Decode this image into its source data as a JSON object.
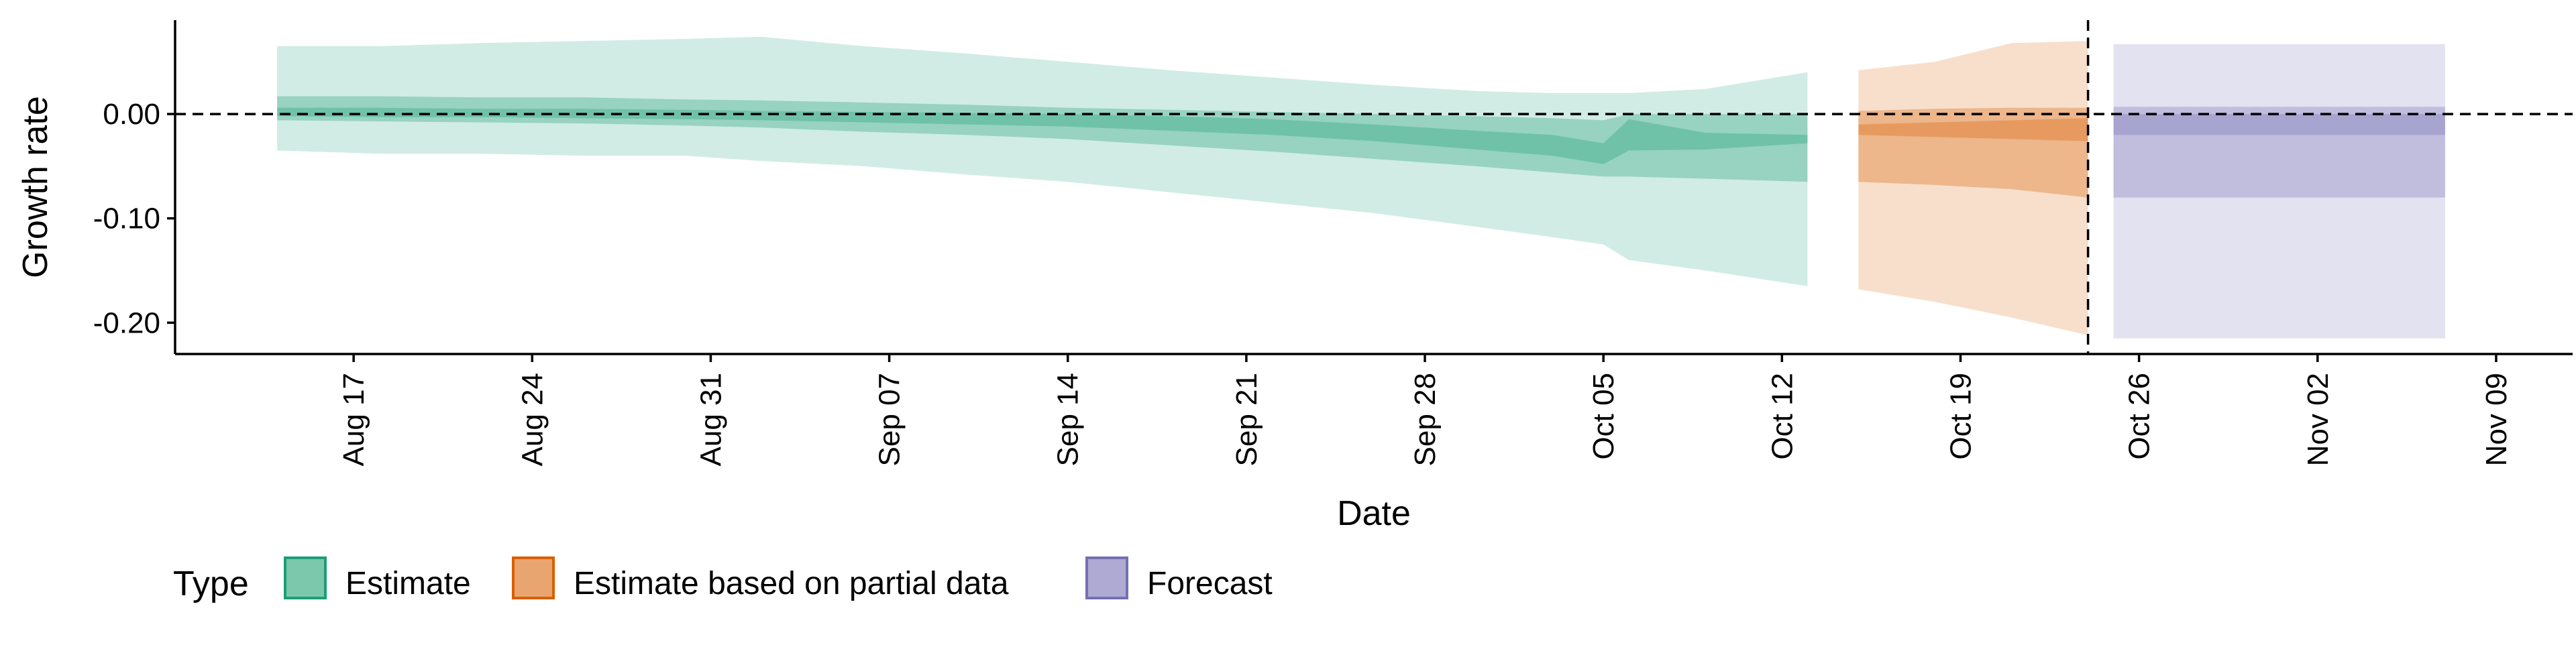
{
  "chart_data": {
    "type": "area",
    "xlabel": "Date",
    "ylabel": "Growth rate",
    "ylim": [
      -0.23,
      0.09
    ],
    "x_date_range": [
      "2020-08-10",
      "2020-11-12"
    ],
    "y_ticks": [
      0.0,
      -0.1,
      -0.2
    ],
    "y_tick_labels": [
      "0.00",
      "-0.10",
      "-0.20"
    ],
    "x_ticks": [
      "2020-08-17",
      "2020-08-24",
      "2020-08-31",
      "2020-09-07",
      "2020-09-14",
      "2020-09-21",
      "2020-09-28",
      "2020-10-05",
      "2020-10-12",
      "2020-10-19",
      "2020-10-26",
      "2020-11-02",
      "2020-11-09"
    ],
    "x_tick_labels": [
      "Aug 17",
      "Aug 24",
      "Aug 31",
      "Sep 07",
      "Sep 14",
      "Sep 21",
      "Sep 28",
      "Oct 05",
      "Oct 12",
      "Oct 19",
      "Oct 26",
      "Nov 02",
      "Nov 09"
    ],
    "reference_lines": {
      "horizontal_y": 0.0,
      "vertical_date": "2020-10-24"
    },
    "legend": {
      "title": "Type",
      "position": "bottom",
      "items": [
        {
          "label": "Estimate",
          "fill": "#7bc8ad",
          "stroke": "#1b9e77"
        },
        {
          "label": "Estimate based on partial data",
          "fill": "#e9a56f",
          "stroke": "#d95f02"
        },
        {
          "label": "Forecast",
          "fill": "#aeaad4",
          "stroke": "#7570b3"
        }
      ]
    },
    "series": [
      {
        "type_label": "Estimate",
        "color": "#1b9e77",
        "points": [
          {
            "date": "2020-08-14",
            "lo90": -0.035,
            "lo50": -0.006,
            "lo20": -0.002,
            "hi20": 0.006,
            "hi50": 0.017,
            "hi90": 0.065
          },
          {
            "date": "2020-08-18",
            "lo90": -0.038,
            "lo50": -0.007,
            "lo20": -0.003,
            "hi20": 0.006,
            "hi50": 0.017,
            "hi90": 0.065
          },
          {
            "date": "2020-08-22",
            "lo90": -0.038,
            "lo50": -0.008,
            "lo20": -0.003,
            "hi20": 0.005,
            "hi50": 0.016,
            "hi90": 0.068
          },
          {
            "date": "2020-08-26",
            "lo90": -0.04,
            "lo50": -0.009,
            "lo20": -0.004,
            "hi20": 0.005,
            "hi50": 0.016,
            "hi90": 0.07
          },
          {
            "date": "2020-08-30",
            "lo90": -0.04,
            "lo50": -0.011,
            "lo20": -0.005,
            "hi20": 0.004,
            "hi50": 0.014,
            "hi90": 0.072
          },
          {
            "date": "2020-09-02",
            "lo90": -0.045,
            "lo50": -0.013,
            "lo20": -0.006,
            "hi20": 0.003,
            "hi50": 0.013,
            "hi90": 0.074
          },
          {
            "date": "2020-09-06",
            "lo90": -0.05,
            "lo50": -0.017,
            "lo20": -0.008,
            "hi20": 0.002,
            "hi50": 0.011,
            "hi90": 0.065
          },
          {
            "date": "2020-09-10",
            "lo90": -0.058,
            "lo50": -0.02,
            "lo20": -0.01,
            "hi20": 0.001,
            "hi50": 0.009,
            "hi90": 0.058
          },
          {
            "date": "2020-09-14",
            "lo90": -0.065,
            "lo50": -0.024,
            "lo20": -0.012,
            "hi20": 0.0,
            "hi50": 0.006,
            "hi90": 0.05
          },
          {
            "date": "2020-09-18",
            "lo90": -0.075,
            "lo50": -0.03,
            "lo20": -0.016,
            "hi20": -0.002,
            "hi50": 0.004,
            "hi90": 0.042
          },
          {
            "date": "2020-09-22",
            "lo90": -0.085,
            "lo50": -0.036,
            "lo20": -0.02,
            "hi20": -0.005,
            "hi50": 0.002,
            "hi90": 0.035
          },
          {
            "date": "2020-09-26",
            "lo90": -0.095,
            "lo50": -0.043,
            "lo20": -0.026,
            "hi20": -0.01,
            "hi50": 0.0,
            "hi90": 0.028
          },
          {
            "date": "2020-09-30",
            "lo90": -0.108,
            "lo50": -0.05,
            "lo20": -0.034,
            "hi20": -0.016,
            "hi50": -0.002,
            "hi90": 0.022
          },
          {
            "date": "2020-10-03",
            "lo90": -0.118,
            "lo50": -0.056,
            "lo20": -0.04,
            "hi20": -0.02,
            "hi50": -0.004,
            "hi90": 0.02
          },
          {
            "date": "2020-10-05",
            "lo90": -0.125,
            "lo50": -0.06,
            "lo20": -0.048,
            "hi20": -0.028,
            "hi50": -0.006,
            "hi90": 0.02
          },
          {
            "date": "2020-10-06",
            "lo90": -0.14,
            "lo50": -0.06,
            "lo20": -0.035,
            "hi20": -0.005,
            "hi50": 0.0,
            "hi90": 0.02
          },
          {
            "date": "2020-10-09",
            "lo90": -0.15,
            "lo50": -0.062,
            "lo20": -0.034,
            "hi20": -0.018,
            "hi50": 0.0,
            "hi90": 0.024
          },
          {
            "date": "2020-10-13",
            "lo90": -0.165,
            "lo50": -0.065,
            "lo20": -0.028,
            "hi20": -0.02,
            "hi50": 0.0,
            "hi90": 0.04
          }
        ]
      },
      {
        "type_label": "Estimate based on partial data",
        "color": "#d95f02",
        "points": [
          {
            "date": "2020-10-15",
            "lo90": -0.168,
            "lo50": -0.065,
            "lo20": -0.02,
            "hi20": -0.01,
            "hi50": 0.003,
            "hi90": 0.042
          },
          {
            "date": "2020-10-18",
            "lo90": -0.18,
            "lo50": -0.068,
            "lo20": -0.022,
            "hi20": -0.008,
            "hi50": 0.005,
            "hi90": 0.05
          },
          {
            "date": "2020-10-21",
            "lo90": -0.195,
            "lo50": -0.072,
            "lo20": -0.024,
            "hi20": -0.006,
            "hi50": 0.006,
            "hi90": 0.068
          },
          {
            "date": "2020-10-24",
            "lo90": -0.212,
            "lo50": -0.08,
            "lo20": -0.026,
            "hi20": -0.004,
            "hi50": 0.006,
            "hi90": 0.07
          }
        ]
      },
      {
        "type_label": "Forecast",
        "color": "#7570b3",
        "points": [
          {
            "date": "2020-10-25",
            "lo90": -0.215,
            "lo50": -0.08,
            "lo20": -0.02,
            "hi20": 0.0,
            "hi50": 0.007,
            "hi90": 0.067
          },
          {
            "date": "2020-11-07",
            "lo90": -0.215,
            "lo50": -0.08,
            "lo20": -0.02,
            "hi20": 0.0,
            "hi50": 0.007,
            "hi90": 0.067
          }
        ]
      }
    ]
  }
}
